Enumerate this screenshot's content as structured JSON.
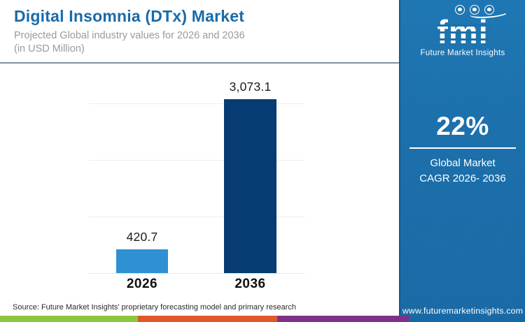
{
  "header": {
    "title": "Digital Insomnia (DTx) Market",
    "subtitle_line1": "Projected Global industry values for 2026 and 2036",
    "subtitle_line2": "(in USD Million)"
  },
  "logo": {
    "text": "fmi",
    "caption": "Future Market Insights"
  },
  "sidebar": {
    "stat_value": "22%",
    "stat_label_line1": "Global Market",
    "stat_label_line2": "CAGR 2026- 2036",
    "website": "www.futuremarketinsights.com"
  },
  "chart_data": {
    "type": "bar",
    "title": "Digital Insomnia (DTx) Market",
    "subtitle": "Projected Global industry values for 2026 and 2036 (in USD Million)",
    "categories": [
      "2026",
      "2036"
    ],
    "values": [
      420.7,
      3073.1
    ],
    "value_labels": [
      "420.7",
      "3,073.1"
    ],
    "unit": "USD Million",
    "ylim": [
      0,
      3200
    ],
    "gridlines": [
      0,
      1000,
      2000,
      3000
    ],
    "grid": "horizontal faint lines, no y-axis tick labels",
    "legend": "none",
    "bar_colors": [
      "#2F91D4",
      "#063C71"
    ]
  },
  "footer": {
    "source": "Source: Future Market Insights' proprietary forecasting model and primary research"
  },
  "colors": {
    "title_blue": "#1A6BA8",
    "panel_blue": "#1C70AB",
    "bar_light_blue": "#2F91D4",
    "bar_navy": "#063C71",
    "stripe_green": "#8DC63F",
    "stripe_orange": "#E0582B",
    "stripe_purple": "#7D3189",
    "stripe_blue": "#1769A6",
    "divider_steel": "#7A93A3"
  }
}
